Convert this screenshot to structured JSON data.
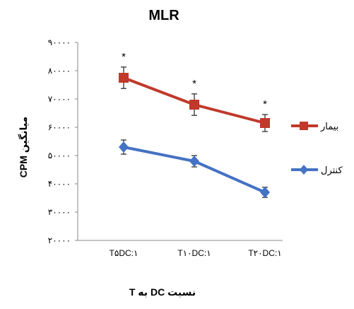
{
  "chart_data": {
    "type": "line",
    "title": "MLR",
    "xlabel": "نسبت DC به T",
    "ylabel": "میانگین CPM",
    "categories": [
      "T5DC:1",
      "T10DC:1",
      "T20DC:1"
    ],
    "category_labels": [
      "T۵DC:۱",
      "T۱۰DC:۱",
      "T۲۰DC:۱"
    ],
    "ylim": [
      20000,
      90000
    ],
    "yticks": [
      20000,
      30000,
      40000,
      50000,
      60000,
      70000,
      80000,
      90000
    ],
    "ytick_labels": [
      "۲۰۰۰۰",
      "۳۰۰۰۰",
      "۴۰۰۰۰",
      "۵۰۰۰۰",
      "۶۰۰۰۰",
      "۷۰۰۰۰",
      "۸۰۰۰۰",
      "۹۰۰۰۰"
    ],
    "grid": false,
    "legend_position": "right",
    "series": [
      {
        "name": "بیمار",
        "values": [
          77500,
          68000,
          61500
        ],
        "errors": [
          3800,
          3800,
          3000
        ],
        "color": "#C0392B",
        "marker": "square",
        "annotations": [
          "*",
          "*",
          "*"
        ]
      },
      {
        "name": "کنترل",
        "values": [
          53000,
          48000,
          37000
        ],
        "errors": [
          2500,
          2000,
          1800
        ],
        "color": "#4472C4",
        "marker": "diamond",
        "annotations": []
      }
    ]
  }
}
